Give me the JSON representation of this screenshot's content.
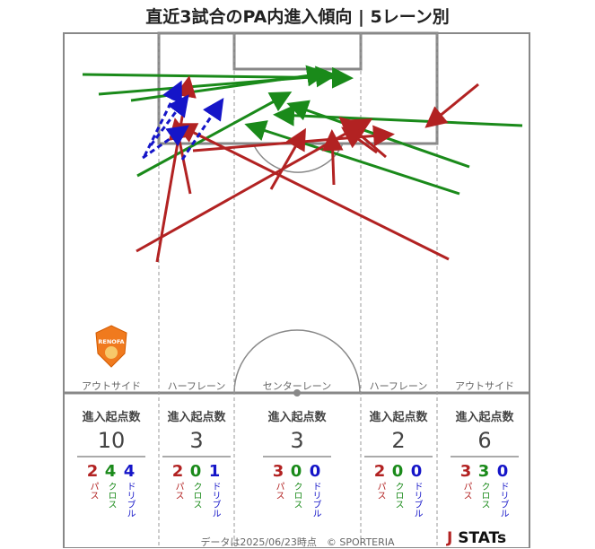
{
  "title": "直近3試合のPA内進入傾向 | 5レーン別",
  "lanes": [
    {
      "label": "アウトサイド",
      "stat_head": "進入起点数",
      "total": "10",
      "pass": "2",
      "cross": "4",
      "dribble": "4"
    },
    {
      "label": "ハーフレーン",
      "stat_head": "進入起点数",
      "total": "3",
      "pass": "2",
      "cross": "0",
      "dribble": "1"
    },
    {
      "label": "センターレーン",
      "stat_head": "進入起点数",
      "total": "3",
      "pass": "3",
      "cross": "0",
      "dribble": "0"
    },
    {
      "label": "ハーフレーン",
      "stat_head": "進入起点数",
      "total": "2",
      "pass": "2",
      "cross": "0",
      "dribble": "0"
    },
    {
      "label": "アウトサイド",
      "stat_head": "進入起点数",
      "total": "6",
      "pass": "3",
      "cross": "3",
      "dribble": "0"
    }
  ],
  "legend": {
    "pass": "パス",
    "cross": "クロス",
    "dribble": "ドリブル"
  },
  "colors": {
    "pass": "#b22222",
    "cross": "#1a8a1a",
    "dribble": "#1515c8",
    "pitch_line": "#888888"
  },
  "footer": "データは2025/06/23時点　© SPORTERIA",
  "logo": {
    "mark": "J",
    "text": "STATs"
  },
  "crest": {
    "text": "RENOFA"
  }
}
